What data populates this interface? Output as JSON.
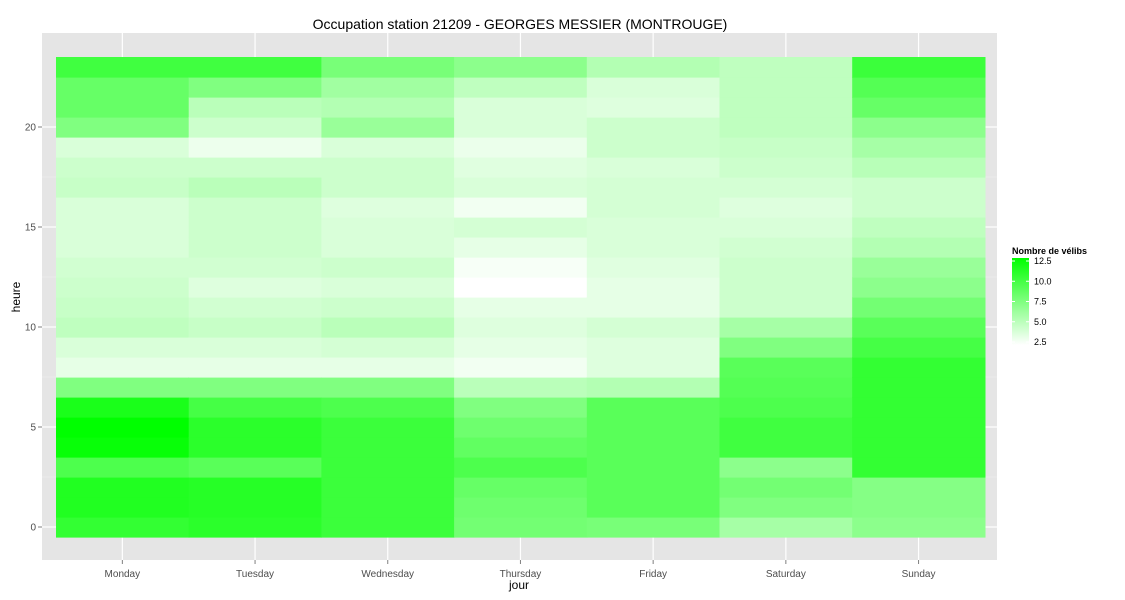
{
  "chart_data": {
    "type": "heatmap",
    "title": "Occupation station 21209 - GEORGES MESSIER (MONTROUGE)",
    "xlabel": "jour",
    "ylabel": "heure",
    "x_categories": [
      "Monday",
      "Tuesday",
      "Wednesday",
      "Thursday",
      "Friday",
      "Saturday",
      "Sunday"
    ],
    "y_range": [
      -0.5,
      23.5
    ],
    "y_ticks": [
      0,
      5,
      10,
      15,
      20
    ],
    "value_range": [
      2.5,
      12.5
    ],
    "low_color": "#ffffff",
    "high_color": "#00ff00",
    "panel_background": "#e5e5e5",
    "grid": true,
    "legend": {
      "title": "Nombre de vélibs",
      "position": "right",
      "ticks": [
        12.5,
        10.0,
        7.5,
        5.0,
        2.5
      ],
      "tick_labels": [
        "12.5",
        "10.0",
        "7.5",
        "5.0",
        "2.5"
      ]
    },
    "series": [
      {
        "name": "Monday",
        "values": [
          10.5,
          11.2,
          11.2,
          9.5,
          12.2,
          12.5,
          11.5,
          7.5,
          3.5,
          4.0,
          5.0,
          4.7,
          4.5,
          4.3,
          4.0,
          4.0,
          4.0,
          4.7,
          4.5,
          4.0,
          7.5,
          8.5,
          8.5,
          10.0
        ]
      },
      {
        "name": "Tuesday",
        "values": [
          10.8,
          11.0,
          11.0,
          9.0,
          10.8,
          10.8,
          9.8,
          7.5,
          3.5,
          4.0,
          4.7,
          4.3,
          3.8,
          4.3,
          4.5,
          4.5,
          4.5,
          5.2,
          4.5,
          3.2,
          4.5,
          5.2,
          7.5,
          10.0
        ]
      },
      {
        "name": "Wednesday",
        "values": [
          10.2,
          10.2,
          10.2,
          10.2,
          10.2,
          10.2,
          9.5,
          7.5,
          3.5,
          4.2,
          5.2,
          4.5,
          4.0,
          4.5,
          4.0,
          4.0,
          3.8,
          4.5,
          4.5,
          4.0,
          6.5,
          5.5,
          6.2,
          7.8
        ]
      },
      {
        "name": "Thursday",
        "values": [
          8.0,
          8.2,
          8.5,
          9.5,
          8.7,
          8.2,
          7.5,
          5.2,
          3.0,
          3.5,
          3.8,
          3.5,
          2.5,
          2.8,
          3.5,
          4.2,
          3.0,
          4.0,
          3.7,
          3.3,
          4.0,
          4.0,
          5.0,
          7.0
        ]
      },
      {
        "name": "Friday",
        "values": [
          7.8,
          9.0,
          9.0,
          9.0,
          9.0,
          9.0,
          9.0,
          5.5,
          3.8,
          3.8,
          4.2,
          3.5,
          3.5,
          3.7,
          4.0,
          4.0,
          4.2,
          4.2,
          4.0,
          4.5,
          4.5,
          3.8,
          4.0,
          5.5
        ]
      },
      {
        "name": "Saturday",
        "values": [
          6.0,
          7.5,
          8.0,
          7.0,
          10.0,
          10.0,
          9.5,
          9.2,
          9.0,
          7.5,
          6.0,
          4.5,
          4.5,
          4.5,
          4.3,
          4.0,
          3.8,
          4.2,
          4.5,
          4.7,
          5.0,
          5.0,
          5.0,
          5.0
        ]
      },
      {
        "name": "Sunday",
        "values": [
          7.0,
          7.3,
          7.3,
          10.5,
          10.5,
          10.5,
          10.5,
          10.5,
          10.5,
          9.8,
          9.0,
          8.0,
          7.0,
          6.5,
          5.5,
          5.0,
          4.5,
          4.5,
          5.3,
          6.0,
          7.0,
          8.5,
          9.2,
          10.2
        ]
      }
    ]
  }
}
